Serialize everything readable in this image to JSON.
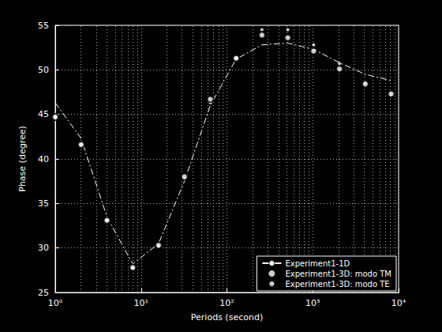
{
  "chart_data": {
    "type": "line",
    "xlabel": "Periods (second)",
    "ylabel": "Phase (degree)",
    "log": "x",
    "grid": true,
    "legend": "lower right",
    "x": [
      1,
      2,
      4,
      8,
      16,
      32,
      64,
      128,
      256,
      512,
      1024,
      2048,
      4096,
      8192
    ],
    "xlim": [
      1,
      10000
    ],
    "xticks": [
      {
        "value": 1,
        "label": "10⁰"
      },
      {
        "value": 10,
        "label": "10¹"
      },
      {
        "value": 100,
        "label": "10²"
      },
      {
        "value": 1000,
        "label": "10³"
      },
      {
        "value": 10000,
        "label": "10⁴"
      }
    ],
    "ylim": [
      25,
      55
    ],
    "yticks": [
      25,
      30,
      35,
      40,
      45,
      50,
      55
    ],
    "series": [
      {
        "name": "Experiment1-1D",
        "type": "line",
        "color": "#ffffff",
        "line_style": "dashdot",
        "values": [
          46.3,
          42.3,
          33.5,
          28.2,
          30.5,
          37.5,
          46.0,
          51.2,
          52.8,
          53.0,
          52.3,
          50.8,
          49.5,
          48.8
        ]
      },
      {
        "name": "Experiment1-3D: modo TM",
        "type": "scatter",
        "color": "#ffffff",
        "marker": "dot",
        "values": [
          44.7,
          41.6,
          33.1,
          27.7,
          30.2,
          37.8,
          46.3,
          51.3,
          54.5,
          54.5,
          52.8,
          50.7,
          48.6,
          47.1
        ]
      },
      {
        "name": "Experiment1-3D: modo TE",
        "type": "scatter",
        "color": "#ffffff",
        "marker": "circle",
        "values": [
          44.7,
          41.6,
          33.1,
          27.8,
          30.3,
          38.0,
          46.7,
          51.3,
          53.9,
          53.6,
          52.1,
          50.1,
          48.4,
          47.3
        ]
      }
    ]
  }
}
